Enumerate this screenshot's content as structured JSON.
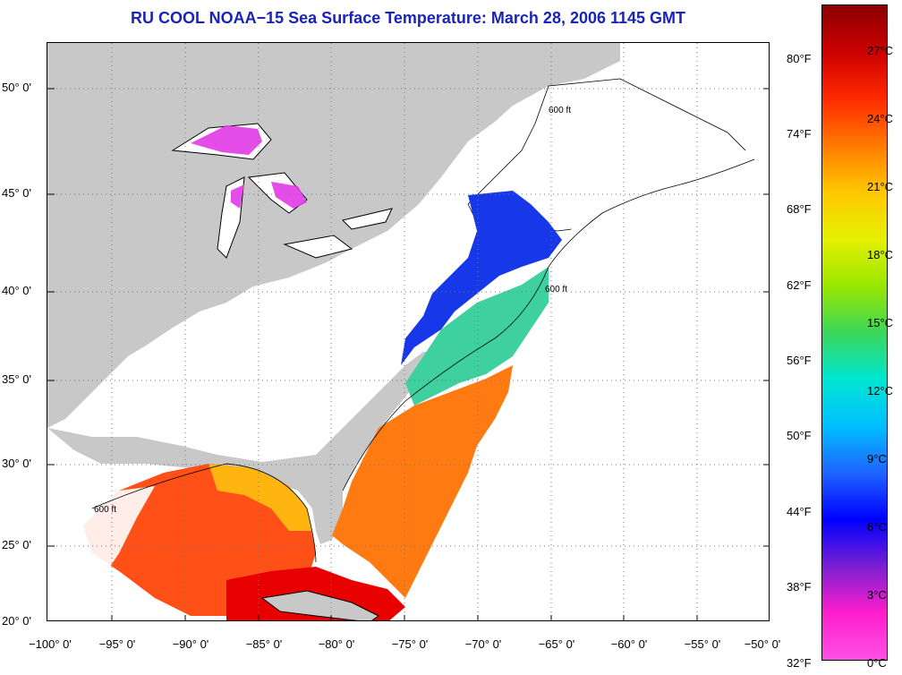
{
  "title": "RU COOL  NOAA−15  Sea Surface Temperature:  March 28, 2006 1145 GMT",
  "map": {
    "lat_labels": [
      "50° 0'",
      "45° 0'",
      "40° 0'",
      "35° 0'",
      "30° 0'",
      "25° 0'",
      "20° 0'"
    ],
    "lon_labels": [
      "−100° 0'",
      "−95° 0'",
      "−90° 0'",
      "−85° 0'",
      "−80° 0'",
      "−75° 0'",
      "−70° 0'",
      "−65° 0'",
      "−60° 0'",
      "−55° 0'",
      "−50° 0'"
    ],
    "contour_label": "600 ft",
    "colors": {
      "land": "#c8c8c8",
      "cloud": "#ffffff",
      "coast": "#000000"
    }
  },
  "colorbar": {
    "fahrenheit_labels": [
      "80°F",
      "74°F",
      "68°F",
      "62°F",
      "56°F",
      "50°F",
      "44°F",
      "38°F",
      "32°F"
    ],
    "celsius_labels": [
      "27°C",
      "24°C",
      "21°C",
      "18°C",
      "15°C",
      "12°C",
      "9°C",
      "6°C",
      "3°C",
      "0°C"
    ],
    "gradient_top_to_bottom": [
      "#8b0000",
      "#cc0000",
      "#ff2a00",
      "#ff7a00",
      "#ffc800",
      "#e6f000",
      "#9ae600",
      "#3ad75a",
      "#00e6d2",
      "#00bfff",
      "#1e64ff",
      "#0000ff",
      "#7a1fd2",
      "#ff1ecc",
      "#ff50e6"
    ]
  }
}
